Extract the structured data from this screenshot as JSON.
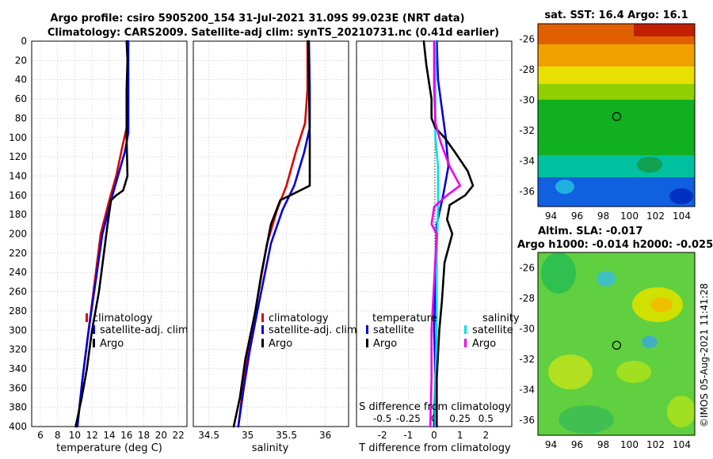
{
  "title": {
    "line1": "Argo profile: csiro 5905200_154 31-Jul-2021 31.09S 99.023E (NRT data)",
    "line2": "Climatology: CARS2009. Satellite-adj clim: synTS_20210731.nc (0.41d earlier)"
  },
  "colors": {
    "climatology": "#dd0000",
    "satellite": "#0000dd",
    "argo": "#000000",
    "sat_salinity": "#00e0e0",
    "argo_salinity": "#ee00ee"
  },
  "depth_ticks": [
    "0",
    "20",
    "40",
    "60",
    "80",
    "100",
    "120",
    "140",
    "160",
    "180",
    "200",
    "220",
    "240",
    "260",
    "280",
    "300",
    "320",
    "340",
    "360",
    "380",
    "400"
  ],
  "chart_data": [
    {
      "type": "line",
      "xlabel": "temperature (deg C)",
      "ylabel": "depth",
      "xlim": [
        5,
        23
      ],
      "ylim": [
        0,
        400
      ],
      "xticks": [
        "6",
        "8",
        "10",
        "12",
        "14",
        "16",
        "18",
        "20",
        "22"
      ],
      "legend": [
        "climatology",
        "satellite-adj. clim",
        "Argo"
      ],
      "series": [
        {
          "name": "climatology",
          "color": "#dd0000",
          "points": [
            [
              16.1,
              0
            ],
            [
              16.1,
              60
            ],
            [
              16.0,
              90
            ],
            [
              15.5,
              110
            ],
            [
              14.8,
              140
            ],
            [
              14.0,
              165
            ],
            [
              13.0,
              200
            ],
            [
              12.3,
              250
            ],
            [
              11.6,
              300
            ],
            [
              10.9,
              350
            ],
            [
              10.3,
              400
            ]
          ]
        },
        {
          "name": "satellite-adj. clim",
          "color": "#0000dd",
          "points": [
            [
              16.2,
              0
            ],
            [
              16.2,
              60
            ],
            [
              16.2,
              95
            ],
            [
              15.8,
              115
            ],
            [
              15.0,
              140
            ],
            [
              14.2,
              165
            ],
            [
              13.2,
              200
            ],
            [
              12.4,
              250
            ],
            [
              11.6,
              300
            ],
            [
              10.9,
              350
            ],
            [
              10.3,
              400
            ]
          ]
        },
        {
          "name": "Argo",
          "color": "#000000",
          "points": [
            [
              16.0,
              0
            ],
            [
              16.1,
              20
            ],
            [
              16.0,
              50
            ],
            [
              16.0,
              100
            ],
            [
              16.1,
              140
            ],
            [
              15.6,
              155
            ],
            [
              14.8,
              160
            ],
            [
              14.2,
              165
            ],
            [
              13.8,
              190
            ],
            [
              13.3,
              225
            ],
            [
              12.8,
              260
            ],
            [
              12.0,
              300
            ],
            [
              11.4,
              340
            ],
            [
              10.8,
              370
            ],
            [
              10.1,
              400
            ]
          ]
        }
      ]
    },
    {
      "type": "line",
      "xlabel": "salinity",
      "ylabel": "depth",
      "xlim": [
        34.3,
        36.3
      ],
      "ylim": [
        0,
        400
      ],
      "xticks": [
        "34.5",
        "35",
        "35.5",
        "36"
      ],
      "legend": [
        "climatology",
        "satellite-adj. clim",
        "Argo"
      ],
      "series": [
        {
          "name": "climatology",
          "color": "#dd0000",
          "points": [
            [
              35.77,
              0
            ],
            [
              35.77,
              50
            ],
            [
              35.74,
              85
            ],
            [
              35.62,
              115
            ],
            [
              35.5,
              150
            ],
            [
              35.38,
              175
            ],
            [
              35.25,
              210
            ],
            [
              35.12,
              270
            ],
            [
              35.01,
              320
            ],
            [
              34.94,
              360
            ],
            [
              34.88,
              400
            ]
          ]
        },
        {
          "name": "satellite-adj. clim",
          "color": "#0000dd",
          "points": [
            [
              35.79,
              0
            ],
            [
              35.8,
              50
            ],
            [
              35.8,
              90
            ],
            [
              35.73,
              115
            ],
            [
              35.6,
              150
            ],
            [
              35.45,
              175
            ],
            [
              35.3,
              210
            ],
            [
              35.15,
              270
            ],
            [
              35.03,
              320
            ],
            [
              34.95,
              360
            ],
            [
              34.88,
              400
            ]
          ]
        },
        {
          "name": "Argo",
          "color": "#000000",
          "points": [
            [
              35.78,
              0
            ],
            [
              35.79,
              50
            ],
            [
              35.8,
              100
            ],
            [
              35.8,
              150
            ],
            [
              35.55,
              160
            ],
            [
              35.42,
              165
            ],
            [
              35.3,
              190
            ],
            [
              35.18,
              240
            ],
            [
              35.1,
              280
            ],
            [
              34.97,
              330
            ],
            [
              34.9,
              370
            ],
            [
              34.82,
              400
            ]
          ]
        }
      ]
    },
    {
      "type": "line",
      "xlabel": "T difference from climatology",
      "xlabel_top": "S difference from climatology",
      "ylabel": "depth",
      "xlim": [
        -3,
        3
      ],
      "ylim": [
        0,
        400
      ],
      "xticks": [
        "-2",
        "-1",
        "0",
        "1",
        "2"
      ],
      "xticks_top": [
        "-0.5",
        "-0.25",
        "0",
        "0.25",
        "0.5"
      ],
      "legend_temperature_title": "temperature",
      "legend_salinity_title": "salinity",
      "legend_temperature": [
        "satellite",
        "Argo"
      ],
      "legend_salinity": [
        "satellite",
        "Argo"
      ],
      "series": [
        {
          "name": "T satellite",
          "color": "#0000dd",
          "points": [
            [
              0.1,
              0
            ],
            [
              0.15,
              40
            ],
            [
              0.3,
              70
            ],
            [
              0.45,
              100
            ],
            [
              0.55,
              130
            ],
            [
              0.35,
              160
            ],
            [
              0.1,
              190
            ],
            [
              0.05,
              250
            ],
            [
              0.0,
              300
            ],
            [
              0.05,
              350
            ],
            [
              0.0,
              400
            ]
          ]
        },
        {
          "name": "S satellite",
          "color": "#00e0e0",
          "points": [
            [
              0.05,
              0
            ],
            [
              0.05,
              100
            ],
            [
              0.15,
              130
            ],
            [
              0.15,
              170
            ],
            [
              0.1,
              220
            ],
            [
              0.1,
              300
            ],
            [
              0.05,
              350
            ],
            [
              0.05,
              400
            ]
          ]
        },
        {
          "name": "T Argo",
          "color": "#000000",
          "points": [
            [
              -0.4,
              0
            ],
            [
              -0.3,
              25
            ],
            [
              -0.1,
              60
            ],
            [
              -0.1,
              80
            ],
            [
              0.05,
              90
            ],
            [
              0.4,
              100
            ],
            [
              0.8,
              115
            ],
            [
              1.3,
              135
            ],
            [
              1.5,
              150
            ],
            [
              1.2,
              160
            ],
            [
              0.6,
              170
            ],
            [
              0.5,
              185
            ],
            [
              0.7,
              200
            ],
            [
              0.4,
              230
            ],
            [
              0.3,
              270
            ],
            [
              0.2,
              300
            ],
            [
              0.1,
              350
            ],
            [
              0.1,
              400
            ]
          ]
        },
        {
          "name": "S Argo",
          "color": "#ee00ee",
          "points": [
            [
              0.0,
              0
            ],
            [
              0.0,
              50
            ],
            [
              0.05,
              85
            ],
            [
              0.25,
              105
            ],
            [
              0.6,
              130
            ],
            [
              1.0,
              150
            ],
            [
              0.5,
              160
            ],
            [
              0.0,
              172
            ],
            [
              -0.1,
              190
            ],
            [
              0.1,
              200
            ],
            [
              0.0,
              250
            ],
            [
              -0.1,
              300
            ],
            [
              -0.1,
              350
            ],
            [
              -0.15,
              400
            ]
          ]
        }
      ]
    },
    {
      "type": "heatmap",
      "title": "sat. SST: 16.4  Argo: 16.1",
      "xlim": [
        93,
        105
      ],
      "ylim": [
        -37,
        -25
      ],
      "xticks": [
        "94",
        "96",
        "98",
        "100",
        "102",
        "104"
      ],
      "yticks": [
        "-26",
        "-28",
        "-30",
        "-32",
        "-34",
        "-36"
      ],
      "marker": {
        "lon": 99.023,
        "lat": -31.09
      }
    },
    {
      "type": "heatmap",
      "title_line1": "Altim. SLA: -0.017",
      "title_line2": "Argo h1000: -0.014  h2000: -0.025",
      "xlim": [
        93,
        105
      ],
      "ylim": [
        -37,
        -25
      ],
      "xticks": [
        "94",
        "96",
        "98",
        "100",
        "102",
        "104"
      ],
      "yticks": [
        "-26",
        "-28",
        "-30",
        "-32",
        "-34",
        "-36"
      ],
      "marker": {
        "lon": 99.023,
        "lat": -31.09
      }
    }
  ],
  "credit": "©IMOS 05-Aug-2021 11:41:28"
}
